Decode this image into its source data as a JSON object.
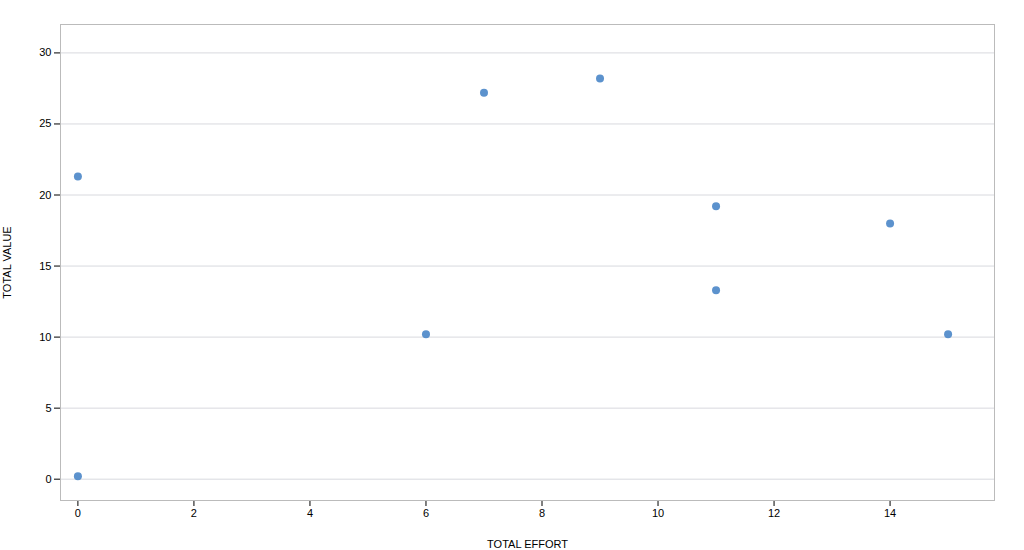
{
  "chart_data": {
    "type": "scatter",
    "x": [
      0,
      0,
      6,
      7,
      9,
      11,
      11,
      14,
      15
    ],
    "values": [
      21.3,
      0.2,
      10.2,
      27.2,
      28.2,
      19.2,
      13.3,
      18.0,
      10.2
    ],
    "color": "#4a86c8",
    "xlabel": "TOTAL EFFORT",
    "ylabel": "TOTAL VALUE",
    "xlim": [
      -0.3,
      15.8
    ],
    "ylim": [
      -1.5,
      32
    ],
    "xticks": [
      0,
      2,
      4,
      6,
      8,
      10,
      12,
      14
    ],
    "yticks": [
      0,
      5,
      10,
      15,
      20,
      25,
      30
    ],
    "grid": true
  }
}
